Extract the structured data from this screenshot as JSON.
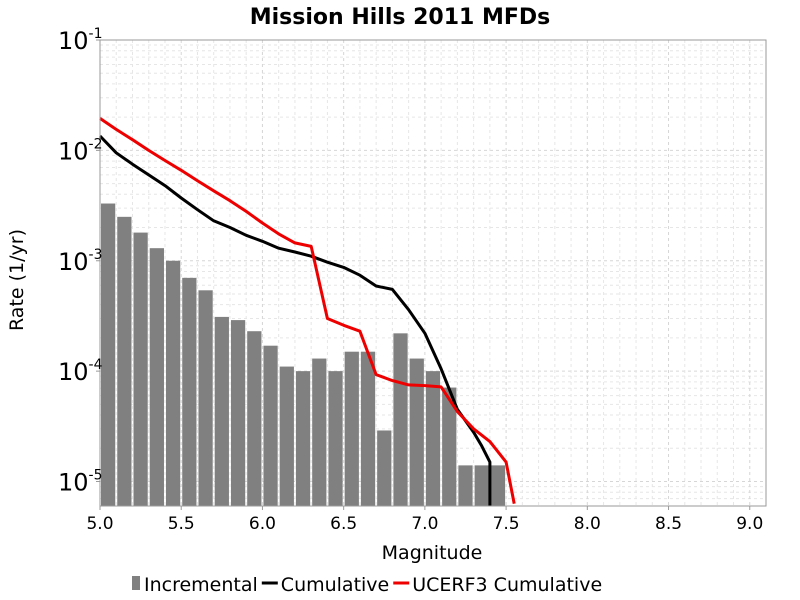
{
  "chart_data": {
    "type": "bar",
    "title": "Mission Hills 2011 MFDs",
    "xlabel": "Magnitude",
    "ylabel": "Rate (1/yr)",
    "xlim": [
      5.0,
      9.1
    ],
    "ylim": [
      6e-06,
      0.1
    ],
    "yscale": "log",
    "grid": true,
    "legend_position": "bottom",
    "x_ticks": [
      "5.0",
      "5.5",
      "6.0",
      "6.5",
      "7.0",
      "7.5",
      "8.0",
      "8.5",
      "9.0"
    ],
    "y_ticks": [
      {
        "base": "10",
        "exp": "-1",
        "value": 0.1
      },
      {
        "base": "10",
        "exp": "-2",
        "value": 0.01
      },
      {
        "base": "10",
        "exp": "-3",
        "value": 0.001
      },
      {
        "base": "10",
        "exp": "-4",
        "value": 0.0001
      },
      {
        "base": "10",
        "exp": "-5",
        "value": 1e-05
      }
    ],
    "series": [
      {
        "name": "Incremental",
        "kind": "bar",
        "color": "#808080",
        "bin_width": 0.1,
        "x": [
          5.0,
          5.1,
          5.2,
          5.3,
          5.4,
          5.5,
          5.6,
          5.7,
          5.8,
          5.9,
          6.0,
          6.1,
          6.2,
          6.3,
          6.4,
          6.5,
          6.6,
          6.7,
          6.8,
          6.9,
          7.0,
          7.1,
          7.2,
          7.3,
          7.4
        ],
        "values": [
          0.0033,
          0.0025,
          0.0018,
          0.0013,
          0.001,
          0.0007,
          0.00054,
          0.00031,
          0.00029,
          0.00023,
          0.00017,
          0.00011,
          0.0001,
          0.00013,
          0.0001,
          0.00015,
          0.00015,
          2.9e-05,
          0.00022,
          0.00013,
          0.0001,
          7.1e-05,
          1.4e-05,
          1.4e-05,
          1.4e-05
        ]
      },
      {
        "name": "Cumulative",
        "kind": "line",
        "color": "#000000",
        "x": [
          5.0,
          5.1,
          5.2,
          5.3,
          5.4,
          5.5,
          5.6,
          5.7,
          5.8,
          5.9,
          6.0,
          6.1,
          6.2,
          6.3,
          6.4,
          6.5,
          6.6,
          6.7,
          6.8,
          6.9,
          7.0,
          7.1,
          7.2,
          7.3,
          7.35,
          7.4,
          7.4
        ],
        "values": [
          0.0135,
          0.0095,
          0.0075,
          0.006,
          0.0048,
          0.0037,
          0.0029,
          0.0023,
          0.002,
          0.0017,
          0.0015,
          0.0013,
          0.0012,
          0.0011,
          0.00097,
          0.00087,
          0.00074,
          0.00059,
          0.00055,
          0.00036,
          0.00022,
          0.000105,
          4.5e-05,
          2.8e-05,
          2.1e-05,
          1.5e-05,
          6e-06
        ]
      },
      {
        "name": "UCERF3 Cumulative",
        "kind": "line",
        "color": "#ee0000",
        "x": [
          5.0,
          5.1,
          5.2,
          5.3,
          5.4,
          5.5,
          5.6,
          5.7,
          5.8,
          5.9,
          6.0,
          6.1,
          6.2,
          6.3,
          6.4,
          6.5,
          6.6,
          6.7,
          6.8,
          6.9,
          7.0,
          7.1,
          7.2,
          7.3,
          7.4,
          7.5,
          7.55
        ],
        "values": [
          0.0195,
          0.0155,
          0.0125,
          0.01,
          0.0081,
          0.0066,
          0.0053,
          0.0043,
          0.0035,
          0.0028,
          0.0022,
          0.00175,
          0.00145,
          0.00135,
          0.0003,
          0.00026,
          0.00023,
          9.3e-05,
          8.2e-05,
          7.5e-05,
          7.4e-05,
          7.2e-05,
          4.3e-05,
          3e-05,
          2.3e-05,
          1.5e-05,
          6.3e-06
        ]
      }
    ]
  }
}
